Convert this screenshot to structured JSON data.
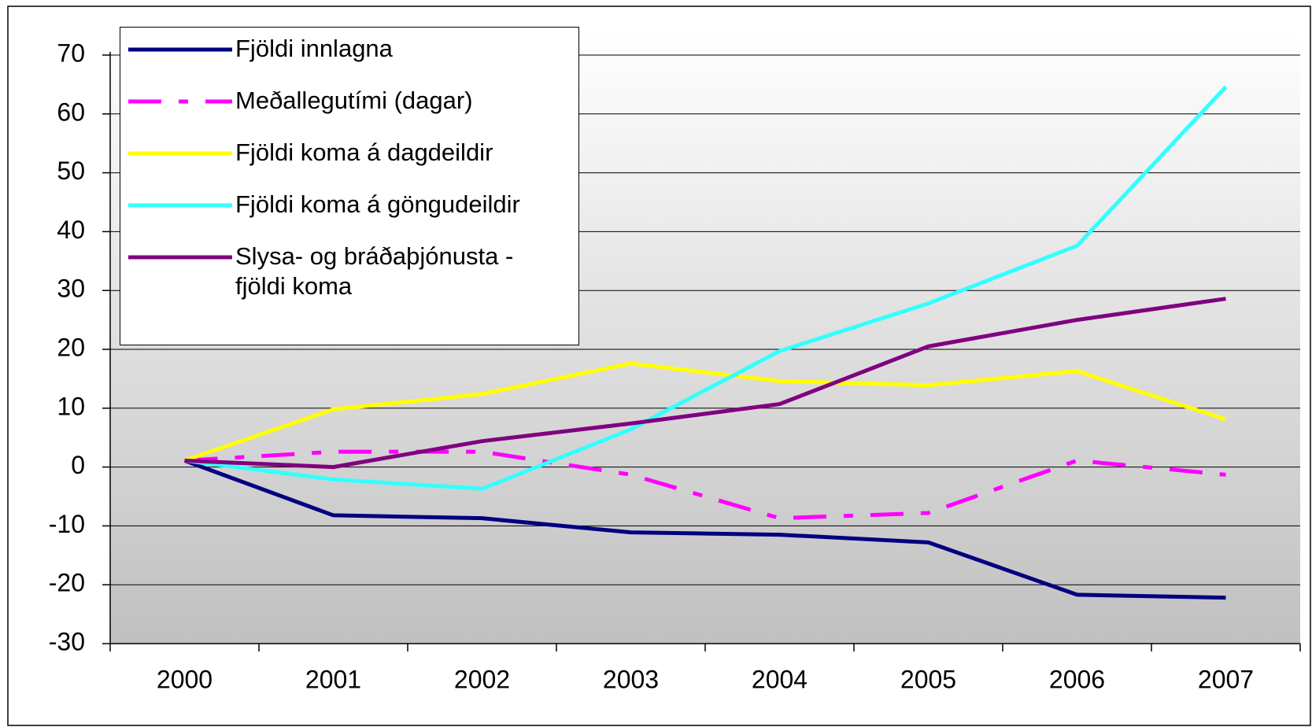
{
  "chart_data": {
    "type": "line",
    "categories": [
      "2000",
      "2001",
      "2002",
      "2003",
      "2004",
      "2005",
      "2006",
      "2007"
    ],
    "series": [
      {
        "name": "Fjöldi innlagna",
        "color": "#000080",
        "dash": "solid",
        "values": [
          1.1,
          -8.2,
          -8.7,
          -11.1,
          -11.5,
          -12.8,
          -21.7,
          -22.2
        ]
      },
      {
        "name": "Meðallegutími (dagar)",
        "color": "#ff00ff",
        "dash": "dashdot",
        "values": [
          1.1,
          2.6,
          2.6,
          -1.3,
          -8.7,
          -7.8,
          1.1,
          -1.3
        ]
      },
      {
        "name": "Fjöldi koma á dagdeildir",
        "color": "#ffff00",
        "dash": "solid",
        "values": [
          1.1,
          9.8,
          12.4,
          17.6,
          14.6,
          13.9,
          16.3,
          8.1
        ]
      },
      {
        "name": "Fjöldi koma á göngudeildir",
        "color": "#33ffff",
        "dash": "solid",
        "values": [
          1.1,
          -2.1,
          -3.7,
          6.4,
          19.7,
          27.8,
          37.6,
          64.6
        ]
      },
      {
        "name": "Slysa- og bráðaþjónusta - fjöldi koma",
        "color": "#800080",
        "dash": "solid",
        "values": [
          1.1,
          0,
          4.4,
          7.4,
          10.7,
          20.5,
          25,
          28.6
        ]
      }
    ],
    "ylim": [
      -30,
      70
    ],
    "yticks": [
      -30,
      -20,
      -10,
      0,
      10,
      20,
      30,
      40,
      50,
      60,
      70
    ],
    "grid": true,
    "legend": "upper left"
  }
}
